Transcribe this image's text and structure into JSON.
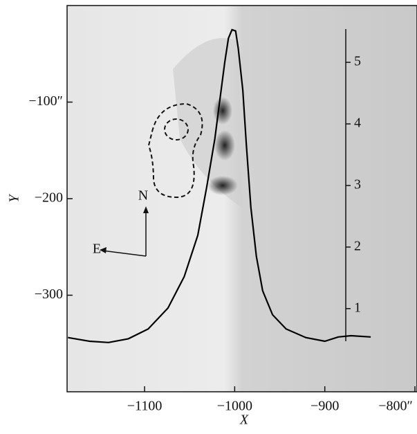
{
  "chart_data": {
    "type": "line",
    "x_label": "X",
    "y_label": "Y",
    "xlim": [
      -1186,
      -800
    ],
    "xticks": [
      {
        "value": -1100,
        "label": "−1100"
      },
      {
        "value": -1000,
        "label": "−1000"
      },
      {
        "value": -900,
        "label": "−900"
      },
      {
        "value": -800,
        "label": "−800″"
      }
    ],
    "ylim": [
      -400,
      0
    ],
    "yticks": [
      {
        "value": -100,
        "label": "−100″"
      },
      {
        "value": -200,
        "label": "−200"
      },
      {
        "value": -300,
        "label": "−300"
      }
    ],
    "y2lim": [
      0.47,
      5.54
    ],
    "y2ticks": [
      1,
      2,
      3,
      4,
      5
    ],
    "annotations": [
      "N",
      "E"
    ],
    "series": [
      {
        "color": "#000000",
        "axis": "y2",
        "x": [
          -1185,
          -1161,
          -1140,
          -1118,
          -1096,
          -1074,
          -1056,
          -1041,
          -1031,
          -1022,
          -1016,
          -1011,
          -1007,
          -1003,
          -999,
          -996,
          -991,
          -987,
          -982,
          -976,
          -969,
          -958,
          -943,
          -921,
          -900,
          -885,
          -871,
          -849
        ],
        "values": [
          0.53,
          0.47,
          0.45,
          0.51,
          0.67,
          1.01,
          1.52,
          2.19,
          2.98,
          3.76,
          4.44,
          5.0,
          5.39,
          5.53,
          5.51,
          5.22,
          4.55,
          3.65,
          2.64,
          1.85,
          1.29,
          0.9,
          0.67,
          0.53,
          0.47,
          0.54,
          0.56,
          0.54
        ]
      }
    ]
  }
}
